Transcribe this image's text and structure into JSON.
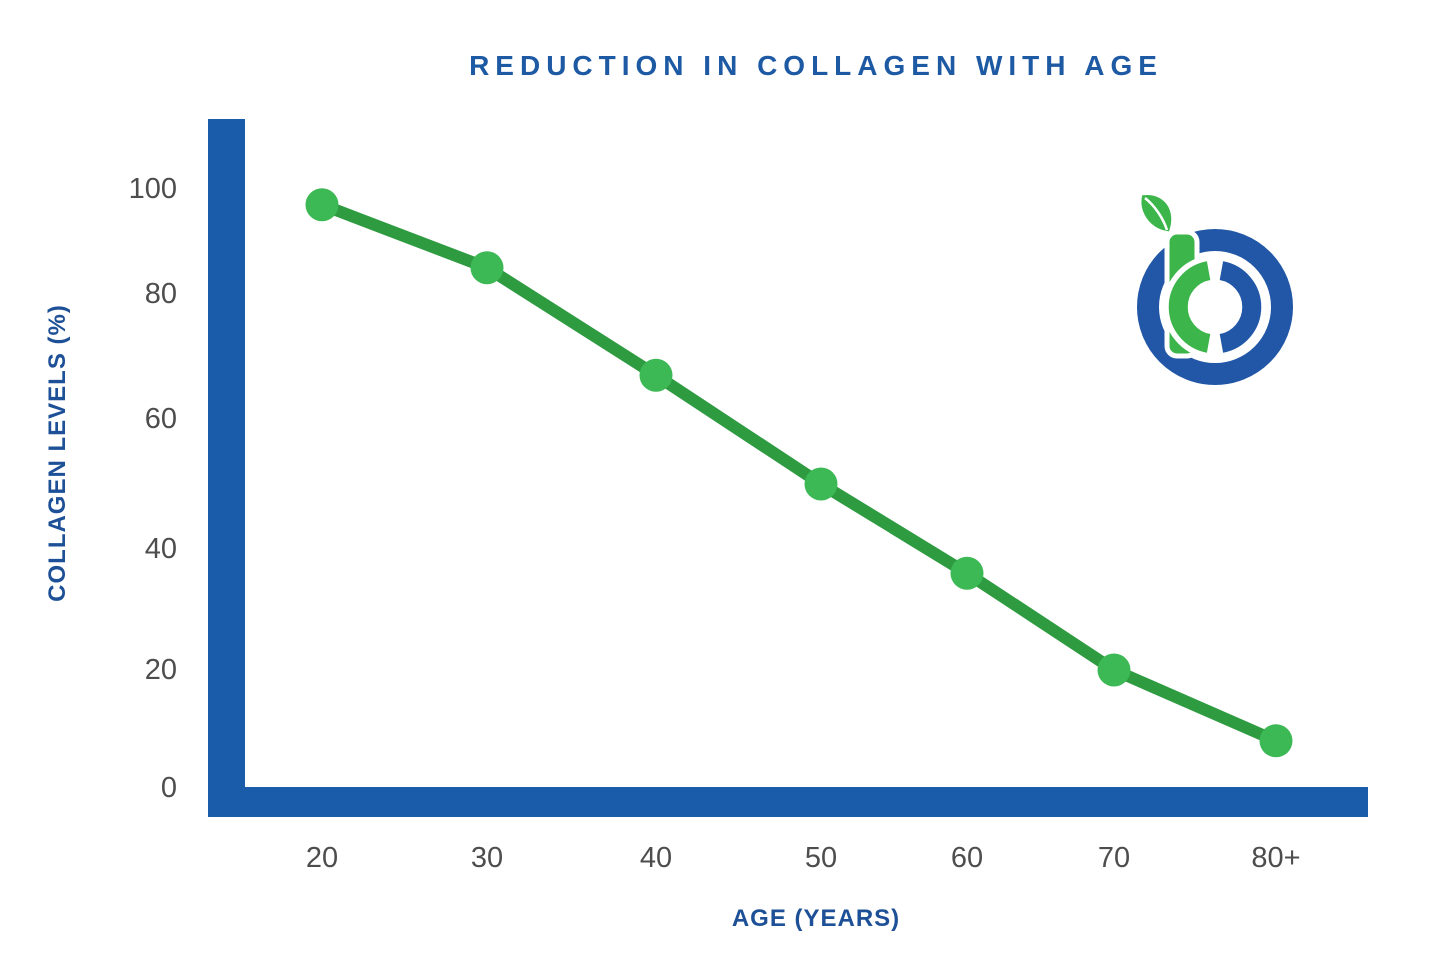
{
  "theme": {
    "background": "#ffffff",
    "title_color": "#1e5aa4",
    "axis_label_color": "#1d5096",
    "tick_color": "#4d4d4d",
    "axis_bar_color": "#1b5caa",
    "line_color": "#2e9b41",
    "marker_color": "#3cb854",
    "logo_green": "#3cb54a",
    "logo_blue": "#2157a6"
  },
  "header": {
    "title": "REDUCTION IN COLLAGEN WITH AGE"
  },
  "chart_data": {
    "type": "line",
    "title": "REDUCTION IN COLLAGEN WITH AGE",
    "xlabel": "AGE (YEARS)",
    "ylabel": "COLLAGEN LEVELS (%)",
    "categories": [
      "20",
      "30",
      "40",
      "50",
      "60",
      "70",
      "80+"
    ],
    "series": [
      {
        "name": "collagen_levels",
        "values": [
          97,
          85,
          67,
          50,
          36,
          20,
          8
        ]
      }
    ],
    "yticks": [
      0,
      20,
      40,
      60,
      80,
      100
    ],
    "ylim": [
      0,
      112
    ],
    "grid": false,
    "legend_position": "none",
    "marker": "circle",
    "annotations": []
  },
  "logo": {
    "alt": "tb leaf brand mark",
    "parts": [
      "leaf",
      "letter-t",
      "letter-b-rings"
    ]
  }
}
